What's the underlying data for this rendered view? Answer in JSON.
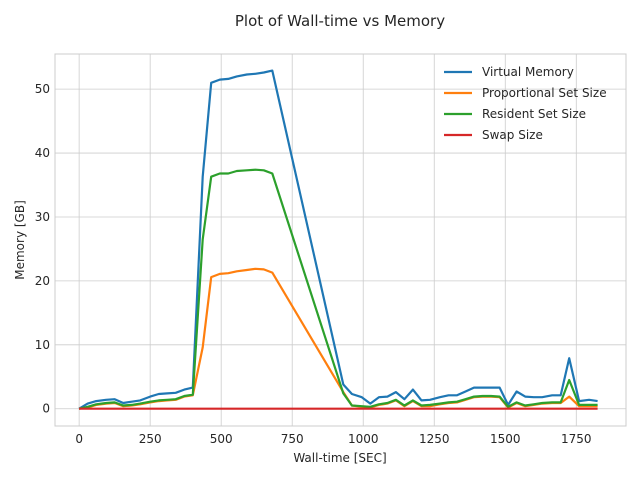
{
  "chart_data": {
    "type": "line",
    "title": "Plot of Wall-time vs Memory",
    "xlabel": "Wall-time [SEC]",
    "ylabel": "Memory [GB]",
    "xlim": [
      -85,
      1925
    ],
    "ylim": [
      -2.7,
      55.5
    ],
    "xticks": [
      0,
      250,
      500,
      750,
      1000,
      1250,
      1500,
      1750
    ],
    "yticks": [
      0,
      10,
      20,
      30,
      40,
      50
    ],
    "grid": true,
    "legend_position": "upper right",
    "series": [
      {
        "name": "Virtual Memory",
        "color": "#1f77b4",
        "x": [
          0,
          30,
          60,
          95,
          125,
          155,
          185,
          215,
          250,
          280,
          310,
          340,
          370,
          400,
          435,
          465,
          495,
          525,
          555,
          590,
          620,
          650,
          680,
          930,
          960,
          995,
          1025,
          1055,
          1085,
          1115,
          1145,
          1175,
          1205,
          1235,
          1270,
          1300,
          1330,
          1360,
          1390,
          1420,
          1450,
          1480,
          1510,
          1540,
          1570,
          1600,
          1630,
          1665,
          1695,
          1725,
          1760,
          1795,
          1825
        ],
        "y": [
          0,
          0.8,
          1.2,
          1.4,
          1.5,
          0.9,
          1.1,
          1.3,
          1.9,
          2.3,
          2.4,
          2.5,
          3.0,
          3.3,
          36.3,
          51.0,
          51.5,
          51.6,
          52.0,
          52.3,
          52.4,
          52.6,
          52.9,
          3.8,
          2.3,
          1.8,
          0.8,
          1.8,
          1.9,
          2.6,
          1.5,
          3.0,
          1.3,
          1.4,
          1.8,
          2.1,
          2.1,
          2.7,
          3.3,
          3.3,
          3.3,
          3.3,
          0.6,
          2.7,
          1.9,
          1.8,
          1.8,
          2.1,
          2.1,
          7.9,
          1.2,
          1.4,
          1.2
        ]
      },
      {
        "name": "Proportional Set Size",
        "color": "#ff7f0e",
        "x": [
          0,
          30,
          60,
          95,
          125,
          155,
          185,
          215,
          250,
          280,
          310,
          340,
          370,
          400,
          435,
          465,
          495,
          525,
          555,
          590,
          620,
          650,
          680,
          930,
          960,
          995,
          1025,
          1055,
          1085,
          1115,
          1145,
          1175,
          1205,
          1235,
          1270,
          1300,
          1330,
          1360,
          1390,
          1420,
          1450,
          1480,
          1510,
          1540,
          1570,
          1600,
          1630,
          1665,
          1695,
          1725,
          1760,
          1795,
          1825
        ],
        "y": [
          0,
          0.2,
          0.6,
          0.8,
          0.9,
          0.4,
          0.5,
          0.7,
          1.0,
          1.2,
          1.3,
          1.4,
          1.9,
          2.1,
          9.6,
          20.6,
          21.1,
          21.2,
          21.5,
          21.7,
          21.9,
          21.8,
          21.3,
          2.6,
          0.5,
          0.3,
          0.2,
          0.6,
          0.8,
          1.3,
          0.4,
          1.2,
          0.4,
          0.4,
          0.7,
          0.9,
          1.0,
          1.4,
          1.8,
          1.9,
          1.9,
          1.8,
          0.2,
          0.9,
          0.4,
          0.6,
          0.8,
          0.9,
          0.9,
          1.9,
          0.4,
          0.4,
          0.4
        ]
      },
      {
        "name": "Resident Set Size",
        "color": "#2ca02c",
        "x": [
          0,
          30,
          60,
          95,
          125,
          155,
          185,
          215,
          250,
          280,
          310,
          340,
          370,
          400,
          435,
          465,
          495,
          525,
          555,
          590,
          620,
          650,
          680,
          930,
          960,
          995,
          1025,
          1055,
          1085,
          1115,
          1145,
          1175,
          1205,
          1235,
          1270,
          1300,
          1330,
          1360,
          1390,
          1420,
          1450,
          1480,
          1510,
          1540,
          1570,
          1600,
          1630,
          1665,
          1695,
          1725,
          1760,
          1795,
          1825
        ],
        "y": [
          0,
          0.3,
          0.7,
          0.9,
          1.0,
          0.5,
          0.6,
          0.8,
          1.1,
          1.3,
          1.4,
          1.5,
          2.0,
          2.2,
          26.5,
          36.3,
          36.8,
          36.8,
          37.2,
          37.3,
          37.4,
          37.3,
          36.8,
          2.4,
          0.5,
          0.4,
          0.3,
          0.7,
          0.9,
          1.4,
          0.5,
          1.3,
          0.5,
          0.6,
          0.8,
          1.0,
          1.1,
          1.5,
          1.9,
          2.0,
          2.0,
          1.9,
          0.3,
          1.0,
          0.5,
          0.7,
          0.9,
          1.0,
          1.0,
          4.5,
          0.6,
          0.6,
          0.6
        ]
      },
      {
        "name": "Swap Size",
        "color": "#d62728",
        "x": [
          0,
          1825
        ],
        "y": [
          0,
          0
        ]
      }
    ]
  }
}
